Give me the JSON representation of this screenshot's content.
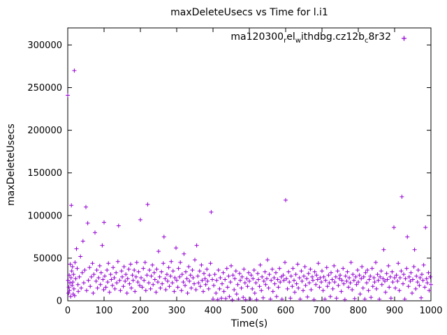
{
  "chart_data": {
    "type": "scatter",
    "title": "maxDeleteUsecs vs Time for l.i1",
    "xlabel": "Time(s)",
    "ylabel": "maxDeleteUsecs",
    "xlim": [
      0,
      1000
    ],
    "ylim": [
      0,
      320000
    ],
    "xticks": [
      0,
      100,
      200,
      300,
      400,
      500,
      600,
      700,
      800,
      900,
      1000
    ],
    "yticks": [
      0,
      50000,
      100000,
      150000,
      200000,
      250000,
      300000
    ],
    "grid": false,
    "marker": "plus",
    "color": "#9400D3",
    "legend": {
      "position": "top-right-inside",
      "text": "ma120300relwithdbg.cz12bc8r32",
      "segments": [
        {
          "t": "ma120300"
        },
        {
          "t": "r",
          "sub": true
        },
        {
          "t": "el"
        },
        {
          "t": "w",
          "sub": true
        },
        {
          "t": "ithdbg.cz12b"
        },
        {
          "t": "c",
          "sub": true
        },
        {
          "t": "8r32"
        }
      ]
    },
    "points": [
      [
        0,
        241000
      ],
      [
        1,
        24000
      ],
      [
        2,
        9000
      ],
      [
        3,
        16000
      ],
      [
        4,
        30000
      ],
      [
        5,
        12000
      ],
      [
        6,
        21000
      ],
      [
        7,
        43000
      ],
      [
        8,
        5000
      ],
      [
        9,
        27000
      ],
      [
        10,
        112000
      ],
      [
        11,
        35000
      ],
      [
        12,
        18000
      ],
      [
        13,
        40000
      ],
      [
        14,
        22000
      ],
      [
        15,
        8000
      ],
      [
        16,
        31000
      ],
      [
        17,
        14000
      ],
      [
        18,
        270000
      ],
      [
        19,
        6000
      ],
      [
        20,
        45000
      ],
      [
        22,
        26000
      ],
      [
        24,
        61000
      ],
      [
        26,
        38000
      ],
      [
        28,
        19000
      ],
      [
        29,
        11000
      ],
      [
        32,
        28000
      ],
      [
        35,
        52000
      ],
      [
        37,
        15000
      ],
      [
        40,
        33000
      ],
      [
        42,
        70000
      ],
      [
        44,
        21000
      ],
      [
        47,
        36000
      ],
      [
        50,
        110000
      ],
      [
        52,
        12000
      ],
      [
        55,
        91000
      ],
      [
        57,
        24000
      ],
      [
        60,
        39000
      ],
      [
        62,
        17000
      ],
      [
        65,
        28000
      ],
      [
        68,
        44000
      ],
      [
        70,
        9000
      ],
      [
        72,
        31000
      ],
      [
        75,
        80000
      ],
      [
        78,
        23000
      ],
      [
        80,
        36000
      ],
      [
        82,
        15000
      ],
      [
        85,
        27000
      ],
      [
        88,
        41000
      ],
      [
        90,
        19000
      ],
      [
        92,
        33000
      ],
      [
        95,
        65000
      ],
      [
        97,
        25000
      ],
      [
        99,
        13000
      ],
      [
        100,
        92000
      ],
      [
        102,
        29000
      ],
      [
        105,
        16000
      ],
      [
        108,
        36000
      ],
      [
        110,
        22000
      ],
      [
        112,
        44000
      ],
      [
        115,
        10000
      ],
      [
        118,
        31000
      ],
      [
        120,
        25000
      ],
      [
        123,
        18000
      ],
      [
        125,
        39000
      ],
      [
        128,
        27000
      ],
      [
        130,
        14000
      ],
      [
        133,
        33000
      ],
      [
        135,
        21000
      ],
      [
        138,
        46000
      ],
      [
        140,
        88000
      ],
      [
        143,
        24000
      ],
      [
        145,
        12000
      ],
      [
        148,
        35000
      ],
      [
        150,
        28000
      ],
      [
        153,
        17000
      ],
      [
        155,
        40000
      ],
      [
        158,
        23000
      ],
      [
        160,
        31000
      ],
      [
        163,
        9000
      ],
      [
        165,
        26000
      ],
      [
        168,
        37000
      ],
      [
        170,
        20000
      ],
      [
        173,
        43000
      ],
      [
        175,
        15000
      ],
      [
        178,
        30000
      ],
      [
        180,
        24000
      ],
      [
        183,
        36000
      ],
      [
        185,
        11000
      ],
      [
        188,
        28000
      ],
      [
        190,
        45000
      ],
      [
        193,
        22000
      ],
      [
        195,
        34000
      ],
      [
        198,
        18000
      ],
      [
        200,
        95000
      ],
      [
        202,
        27000
      ],
      [
        205,
        16000
      ],
      [
        208,
        38000
      ],
      [
        210,
        24000
      ],
      [
        213,
        45000
      ],
      [
        215,
        12000
      ],
      [
        218,
        30000
      ],
      [
        220,
        113000
      ],
      [
        223,
        21000
      ],
      [
        225,
        36000
      ],
      [
        228,
        14000
      ],
      [
        230,
        29000
      ],
      [
        233,
        42000
      ],
      [
        235,
        19000
      ],
      [
        238,
        33000
      ],
      [
        240,
        25000
      ],
      [
        243,
        10000
      ],
      [
        245,
        37000
      ],
      [
        248,
        22000
      ],
      [
        250,
        58000
      ],
      [
        253,
        28000
      ],
      [
        255,
        15000
      ],
      [
        258,
        34000
      ],
      [
        260,
        20000
      ],
      [
        263,
        44000
      ],
      [
        265,
        75000
      ],
      [
        268,
        26000
      ],
      [
        270,
        13000
      ],
      [
        273,
        31000
      ],
      [
        275,
        23000
      ],
      [
        278,
        39000
      ],
      [
        280,
        17000
      ],
      [
        283,
        29000
      ],
      [
        285,
        46000
      ],
      [
        288,
        21000
      ],
      [
        290,
        35000
      ],
      [
        293,
        11000
      ],
      [
        295,
        27000
      ],
      [
        298,
        62000
      ],
      [
        300,
        24000
      ],
      [
        303,
        16000
      ],
      [
        305,
        38000
      ],
      [
        308,
        28000
      ],
      [
        310,
        45000
      ],
      [
        313,
        12000
      ],
      [
        315,
        31000
      ],
      [
        318,
        22000
      ],
      [
        320,
        55000
      ],
      [
        323,
        18000
      ],
      [
        325,
        34000
      ],
      [
        328,
        26000
      ],
      [
        330,
        9000
      ],
      [
        333,
        40000
      ],
      [
        335,
        23000
      ],
      [
        338,
        30000
      ],
      [
        340,
        15000
      ],
      [
        343,
        36000
      ],
      [
        345,
        27000
      ],
      [
        348,
        20000
      ],
      [
        350,
        48000
      ],
      [
        353,
        13000
      ],
      [
        355,
        65000
      ],
      [
        358,
        29000
      ],
      [
        360,
        21000
      ],
      [
        363,
        35000
      ],
      [
        365,
        17000
      ],
      [
        368,
        42000
      ],
      [
        370,
        24000
      ],
      [
        373,
        11000
      ],
      [
        375,
        32000
      ],
      [
        378,
        26000
      ],
      [
        380,
        19000
      ],
      [
        383,
        37000
      ],
      [
        385,
        23000
      ],
      [
        388,
        14000
      ],
      [
        390,
        30000
      ],
      [
        393,
        44000
      ],
      [
        395,
        104000
      ],
      [
        398,
        25000
      ],
      [
        400,
        2000
      ],
      [
        402,
        18000
      ],
      [
        405,
        31000
      ],
      [
        408,
        9000
      ],
      [
        410,
        24000
      ],
      [
        413,
        1500
      ],
      [
        415,
        36000
      ],
      [
        418,
        14000
      ],
      [
        420,
        27000
      ],
      [
        423,
        3000
      ],
      [
        425,
        20000
      ],
      [
        428,
        33000
      ],
      [
        430,
        11000
      ],
      [
        433,
        25000
      ],
      [
        435,
        2500
      ],
      [
        438,
        38000
      ],
      [
        440,
        16000
      ],
      [
        443,
        29000
      ],
      [
        445,
        5000
      ],
      [
        448,
        22000
      ],
      [
        450,
        41000
      ],
      [
        453,
        1000
      ],
      [
        455,
        30000
      ],
      [
        458,
        13000
      ],
      [
        460,
        26000
      ],
      [
        463,
        35000
      ],
      [
        465,
        8000
      ],
      [
        468,
        19000
      ],
      [
        470,
        2000
      ],
      [
        473,
        32000
      ],
      [
        475,
        24000
      ],
      [
        478,
        15000
      ],
      [
        480,
        28000
      ],
      [
        483,
        4000
      ],
      [
        485,
        37000
      ],
      [
        488,
        21000
      ],
      [
        490,
        1200
      ],
      [
        493,
        26000
      ],
      [
        495,
        17000
      ],
      [
        498,
        33000
      ],
      [
        500,
        23000
      ],
      [
        503,
        2000
      ],
      [
        505,
        30000
      ],
      [
        508,
        14000
      ],
      [
        510,
        26000
      ],
      [
        513,
        36000
      ],
      [
        515,
        9000
      ],
      [
        518,
        21000
      ],
      [
        520,
        1500
      ],
      [
        523,
        32000
      ],
      [
        525,
        25000
      ],
      [
        528,
        17000
      ],
      [
        530,
        42000
      ],
      [
        533,
        12000
      ],
      [
        535,
        28000
      ],
      [
        538,
        3500
      ],
      [
        540,
        23000
      ],
      [
        543,
        34000
      ],
      [
        545,
        19000
      ],
      [
        548,
        26000
      ],
      [
        550,
        48000
      ],
      [
        553,
        15000
      ],
      [
        555,
        31000
      ],
      [
        558,
        2000
      ],
      [
        560,
        24000
      ],
      [
        563,
        37000
      ],
      [
        565,
        11000
      ],
      [
        568,
        27000
      ],
      [
        570,
        20000
      ],
      [
        573,
        33000
      ],
      [
        575,
        5000
      ],
      [
        578,
        25000
      ],
      [
        580,
        16000
      ],
      [
        583,
        38000
      ],
      [
        585,
        22000
      ],
      [
        588,
        28000
      ],
      [
        590,
        1800
      ],
      [
        593,
        30000
      ],
      [
        595,
        24000
      ],
      [
        598,
        45000
      ],
      [
        600,
        118000
      ],
      [
        602,
        26000
      ],
      [
        605,
        14000
      ],
      [
        608,
        34000
      ],
      [
        610,
        22000
      ],
      [
        613,
        3000
      ],
      [
        615,
        29000
      ],
      [
        618,
        17000
      ],
      [
        620,
        38000
      ],
      [
        623,
        24000
      ],
      [
        625,
        10000
      ],
      [
        628,
        31000
      ],
      [
        630,
        20000
      ],
      [
        633,
        43000
      ],
      [
        635,
        15000
      ],
      [
        638,
        27000
      ],
      [
        640,
        2000
      ],
      [
        643,
        35000
      ],
      [
        645,
        23000
      ],
      [
        648,
        12000
      ],
      [
        650,
        29000
      ],
      [
        653,
        40000
      ],
      [
        655,
        18000
      ],
      [
        658,
        26000
      ],
      [
        660,
        4500
      ],
      [
        663,
        32000
      ],
      [
        665,
        21000
      ],
      [
        668,
        37000
      ],
      [
        670,
        13000
      ],
      [
        673,
        28000
      ],
      [
        675,
        24000
      ],
      [
        678,
        1500
      ],
      [
        680,
        34000
      ],
      [
        683,
        19000
      ],
      [
        685,
        30000
      ],
      [
        688,
        25000
      ],
      [
        690,
        44000
      ],
      [
        693,
        16000
      ],
      [
        695,
        27000
      ],
      [
        698,
        22000
      ],
      [
        700,
        35000
      ],
      [
        703,
        12000
      ],
      [
        705,
        28000
      ],
      [
        708,
        2000
      ],
      [
        710,
        24000
      ],
      [
        713,
        39000
      ],
      [
        715,
        17000
      ],
      [
        718,
        30000
      ],
      [
        720,
        21000
      ],
      [
        723,
        5000
      ],
      [
        725,
        33000
      ],
      [
        728,
        25000
      ],
      [
        730,
        14000
      ],
      [
        733,
        41000
      ],
      [
        735,
        22000
      ],
      [
        738,
        28000
      ],
      [
        740,
        3000
      ],
      [
        743,
        35000
      ],
      [
        745,
        18000
      ],
      [
        748,
        26000
      ],
      [
        750,
        30000
      ],
      [
        753,
        11000
      ],
      [
        755,
        24000
      ],
      [
        758,
        38000
      ],
      [
        760,
        20000
      ],
      [
        763,
        1500
      ],
      [
        765,
        29000
      ],
      [
        768,
        23000
      ],
      [
        770,
        34000
      ],
      [
        773,
        16000
      ],
      [
        775,
        27000
      ],
      [
        778,
        21000
      ],
      [
        780,
        45000
      ],
      [
        783,
        13000
      ],
      [
        785,
        31000
      ],
      [
        788,
        24000
      ],
      [
        790,
        2500
      ],
      [
        793,
        28000
      ],
      [
        795,
        19000
      ],
      [
        798,
        36000
      ],
      [
        800,
        22000
      ],
      [
        803,
        30000
      ],
      [
        805,
        8000
      ],
      [
        808,
        26000
      ],
      [
        810,
        40000
      ],
      [
        813,
        15000
      ],
      [
        815,
        28000
      ],
      [
        818,
        2000
      ],
      [
        820,
        33000
      ],
      [
        823,
        21000
      ],
      [
        825,
        36000
      ],
      [
        828,
        12000
      ],
      [
        830,
        25000
      ],
      [
        833,
        29000
      ],
      [
        835,
        4000
      ],
      [
        838,
        38000
      ],
      [
        840,
        17000
      ],
      [
        843,
        27000
      ],
      [
        845,
        22000
      ],
      [
        848,
        45000
      ],
      [
        850,
        14000
      ],
      [
        853,
        31000
      ],
      [
        855,
        24000
      ],
      [
        858,
        1800
      ],
      [
        860,
        28000
      ],
      [
        863,
        35000
      ],
      [
        865,
        19000
      ],
      [
        868,
        26000
      ],
      [
        870,
        60000
      ],
      [
        873,
        23000
      ],
      [
        875,
        10000
      ],
      [
        878,
        32000
      ],
      [
        880,
        25000
      ],
      [
        883,
        41000
      ],
      [
        885,
        16000
      ],
      [
        888,
        28000
      ],
      [
        890,
        3000
      ],
      [
        893,
        34000
      ],
      [
        895,
        22000
      ],
      [
        898,
        86000
      ],
      [
        900,
        27000
      ],
      [
        902,
        15000
      ],
      [
        905,
        30000
      ],
      [
        908,
        23000
      ],
      [
        910,
        44000
      ],
      [
        913,
        12000
      ],
      [
        915,
        27000
      ],
      [
        918,
        35000
      ],
      [
        920,
        122000
      ],
      [
        923,
        20000
      ],
      [
        925,
        31000
      ],
      [
        928,
        2000
      ],
      [
        930,
        26000
      ],
      [
        933,
        38000
      ],
      [
        935,
        75000
      ],
      [
        938,
        17000
      ],
      [
        940,
        28000
      ],
      [
        943,
        23000
      ],
      [
        945,
        33000
      ],
      [
        948,
        9000
      ],
      [
        950,
        25000
      ],
      [
        953,
        40000
      ],
      [
        955,
        60000
      ],
      [
        958,
        14000
      ],
      [
        960,
        29000
      ],
      [
        963,
        22000
      ],
      [
        965,
        36000
      ],
      [
        968,
        18000
      ],
      [
        970,
        27000
      ],
      [
        973,
        3500
      ],
      [
        975,
        31000
      ],
      [
        978,
        24000
      ],
      [
        980,
        42000
      ],
      [
        983,
        16000
      ],
      [
        985,
        86000
      ],
      [
        988,
        26000
      ],
      [
        990,
        21000
      ],
      [
        993,
        33000
      ],
      [
        995,
        12000
      ],
      [
        998,
        28000
      ],
      [
        1000,
        19000
      ]
    ]
  }
}
